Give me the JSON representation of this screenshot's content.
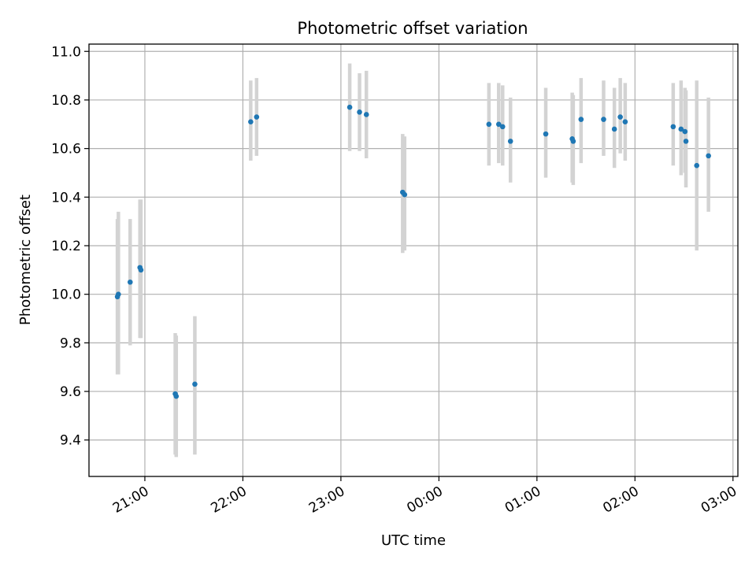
{
  "chart_data": {
    "type": "scatter",
    "title": "Photometric offset variation",
    "xlabel": "UTC time",
    "ylabel": "Photometric offset",
    "xlim_hours": [
      20.43,
      27.05
    ],
    "ylim": [
      9.25,
      11.03
    ],
    "x_ticks": [
      {
        "hours": 21,
        "label": "21:00"
      },
      {
        "hours": 22,
        "label": "22:00"
      },
      {
        "hours": 23,
        "label": "23:00"
      },
      {
        "hours": 24,
        "label": "00:00"
      },
      {
        "hours": 25,
        "label": "01:00"
      },
      {
        "hours": 26,
        "label": "02:00"
      },
      {
        "hours": 27,
        "label": "03:00"
      }
    ],
    "y_ticks": [
      {
        "value": 9.4,
        "label": "9.4"
      },
      {
        "value": 9.6,
        "label": "9.6"
      },
      {
        "value": 9.8,
        "label": "9.8"
      },
      {
        "value": 10.0,
        "label": "10.0"
      },
      {
        "value": 10.2,
        "label": "10.2"
      },
      {
        "value": 10.4,
        "label": "10.4"
      },
      {
        "value": 10.6,
        "label": "10.6"
      },
      {
        "value": 10.8,
        "label": "10.8"
      },
      {
        "value": 11.0,
        "label": "11.0"
      }
    ],
    "grid": true,
    "point_color": "#1f77b4",
    "error_color": "#d3d3d3",
    "series": [
      {
        "name": "offset",
        "points": [
          {
            "time": 20.72,
            "value": 9.99,
            "err_low": 9.67,
            "err_high": 10.31
          },
          {
            "time": 20.73,
            "value": 10.0,
            "err_low": 9.67,
            "err_high": 10.34
          },
          {
            "time": 20.85,
            "value": 10.05,
            "err_low": 9.79,
            "err_high": 10.31
          },
          {
            "time": 20.95,
            "value": 10.11,
            "err_low": 9.82,
            "err_high": 10.39
          },
          {
            "time": 20.96,
            "value": 10.1,
            "err_low": 9.82,
            "err_high": 10.39
          },
          {
            "time": 21.31,
            "value": 9.59,
            "err_low": 9.34,
            "err_high": 9.84
          },
          {
            "time": 21.32,
            "value": 9.58,
            "err_low": 9.33,
            "err_high": 9.83
          },
          {
            "time": 21.51,
            "value": 9.63,
            "err_low": 9.34,
            "err_high": 9.91
          },
          {
            "time": 22.08,
            "value": 10.71,
            "err_low": 10.55,
            "err_high": 10.88
          },
          {
            "time": 22.14,
            "value": 10.73,
            "err_low": 10.57,
            "err_high": 10.89
          },
          {
            "time": 23.09,
            "value": 10.77,
            "err_low": 10.59,
            "err_high": 10.95
          },
          {
            "time": 23.19,
            "value": 10.75,
            "err_low": 10.59,
            "err_high": 10.91
          },
          {
            "time": 23.26,
            "value": 10.74,
            "err_low": 10.56,
            "err_high": 10.92
          },
          {
            "time": 23.63,
            "value": 10.42,
            "err_low": 10.17,
            "err_high": 10.66
          },
          {
            "time": 23.65,
            "value": 10.41,
            "err_low": 10.18,
            "err_high": 10.65
          },
          {
            "time": 24.51,
            "value": 10.7,
            "err_low": 10.53,
            "err_high": 10.87
          },
          {
            "time": 24.61,
            "value": 10.7,
            "err_low": 10.54,
            "err_high": 10.87
          },
          {
            "time": 24.65,
            "value": 10.69,
            "err_low": 10.53,
            "err_high": 10.86
          },
          {
            "time": 24.73,
            "value": 10.63,
            "err_low": 10.46,
            "err_high": 10.81
          },
          {
            "time": 25.09,
            "value": 10.66,
            "err_low": 10.48,
            "err_high": 10.85
          },
          {
            "time": 25.36,
            "value": 10.64,
            "err_low": 10.46,
            "err_high": 10.83
          },
          {
            "time": 25.37,
            "value": 10.63,
            "err_low": 10.45,
            "err_high": 10.82
          },
          {
            "time": 25.45,
            "value": 10.72,
            "err_low": 10.54,
            "err_high": 10.89
          },
          {
            "time": 25.68,
            "value": 10.72,
            "err_low": 10.57,
            "err_high": 10.88
          },
          {
            "time": 25.79,
            "value": 10.68,
            "err_low": 10.52,
            "err_high": 10.85
          },
          {
            "time": 25.85,
            "value": 10.73,
            "err_low": 10.58,
            "err_high": 10.89
          },
          {
            "time": 25.9,
            "value": 10.71,
            "err_low": 10.55,
            "err_high": 10.87
          },
          {
            "time": 26.39,
            "value": 10.69,
            "err_low": 10.53,
            "err_high": 10.87
          },
          {
            "time": 26.47,
            "value": 10.68,
            "err_low": 10.49,
            "err_high": 10.88
          },
          {
            "time": 26.51,
            "value": 10.67,
            "err_low": 10.5,
            "err_high": 10.85
          },
          {
            "time": 26.52,
            "value": 10.63,
            "err_low": 10.44,
            "err_high": 10.84
          },
          {
            "time": 26.63,
            "value": 10.53,
            "err_low": 10.18,
            "err_high": 10.88
          },
          {
            "time": 26.75,
            "value": 10.57,
            "err_low": 10.34,
            "err_high": 10.81
          }
        ]
      }
    ]
  }
}
